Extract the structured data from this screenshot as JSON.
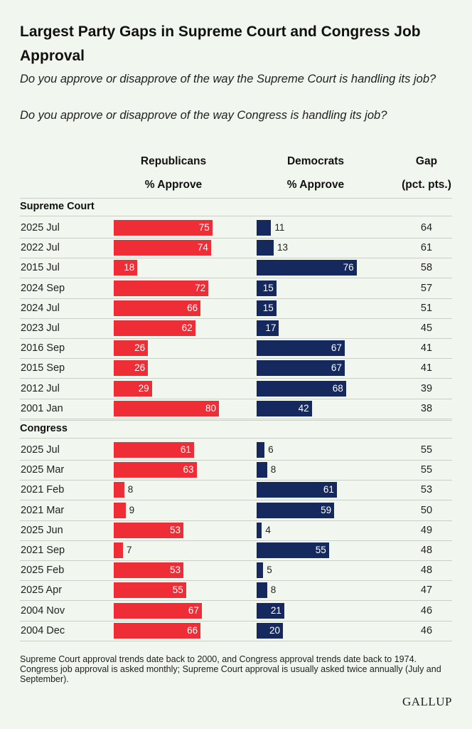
{
  "chart_data": {
    "type": "bar",
    "title": "Largest Party Gaps in Supreme Court and Congress Job Approval",
    "questions": [
      "Do you approve or disapprove of the way the Supreme Court is handling its job?",
      "Do you approve or disapprove of the way Congress is handling its job?"
    ],
    "columns": {
      "rep_line1": "Republicans",
      "rep_line2": "% Approve",
      "dem_line1": "Democrats",
      "dem_line2": "% Approve",
      "gap_line1": "Gap",
      "gap_line2": "(pct. pts.)"
    },
    "series": [
      {
        "name": "Republicans % Approve",
        "color": "#ef2d37"
      },
      {
        "name": "Democrats % Approve",
        "color": "#16295f"
      }
    ],
    "sections": [
      {
        "name": "Supreme Court",
        "rows": [
          {
            "label": "2025 Jul",
            "rep": 75,
            "dem": 11,
            "gap": 64
          },
          {
            "label": "2022 Jul",
            "rep": 74,
            "dem": 13,
            "gap": 61
          },
          {
            "label": "2015 Jul",
            "rep": 18,
            "dem": 76,
            "gap": 58
          },
          {
            "label": "2024 Sep",
            "rep": 72,
            "dem": 15,
            "gap": 57
          },
          {
            "label": "2024 Jul",
            "rep": 66,
            "dem": 15,
            "gap": 51
          },
          {
            "label": "2023 Jul",
            "rep": 62,
            "dem": 17,
            "gap": 45
          },
          {
            "label": "2016 Sep",
            "rep": 26,
            "dem": 67,
            "gap": 41
          },
          {
            "label": "2015 Sep",
            "rep": 26,
            "dem": 67,
            "gap": 41
          },
          {
            "label": "2012 Jul",
            "rep": 29,
            "dem": 68,
            "gap": 39
          },
          {
            "label": "2001 Jan",
            "rep": 80,
            "dem": 42,
            "gap": 38
          }
        ]
      },
      {
        "name": "Congress",
        "rows": [
          {
            "label": "2025 Jul",
            "rep": 61,
            "dem": 6,
            "gap": 55
          },
          {
            "label": "2025 Mar",
            "rep": 63,
            "dem": 8,
            "gap": 55
          },
          {
            "label": "2021 Feb",
            "rep": 8,
            "dem": 61,
            "gap": 53
          },
          {
            "label": "2021 Mar",
            "rep": 9,
            "dem": 59,
            "gap": 50
          },
          {
            "label": "2025 Jun",
            "rep": 53,
            "dem": 4,
            "gap": 49
          },
          {
            "label": "2021 Sep",
            "rep": 7,
            "dem": 55,
            "gap": 48
          },
          {
            "label": "2025 Feb",
            "rep": 53,
            "dem": 5,
            "gap": 48
          },
          {
            "label": "2025 Apr",
            "rep": 55,
            "dem": 8,
            "gap": 47
          },
          {
            "label": "2004 Nov",
            "rep": 67,
            "dem": 21,
            "gap": 46
          },
          {
            "label": "2004 Dec",
            "rep": 66,
            "dem": 20,
            "gap": 46
          }
        ]
      }
    ],
    "footnote": "Supreme Court approval trends date back to 2000, and Congress approval trends date back to 1974. Congress job approval is asked monthly; Supreme Court approval is usually asked twice annually (July and September).",
    "source": "GALLUP"
  }
}
